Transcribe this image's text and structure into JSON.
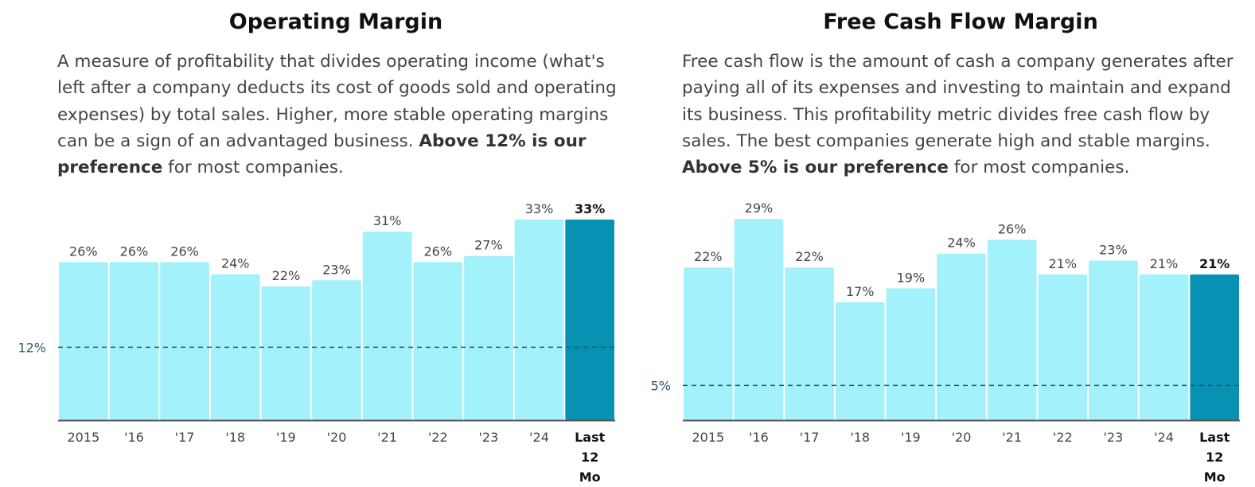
{
  "panels": [
    {
      "title": "Operating Margin",
      "description_pre": "A measure of profitability that divides operating income (what's left after a company deducts its cost of goods sold and operating expenses) by total sales. Higher, more stable operating margins can be a sign of an advantaged business. ",
      "description_bold": "Above 12% is our preference",
      "description_post": " for most companies.",
      "chart_data": {
        "type": "bar",
        "categories": [
          "2015",
          "'16",
          "'17",
          "'18",
          "'19",
          "'20",
          "'21",
          "'22",
          "'23",
          "'24",
          "Last 12 Mo"
        ],
        "values": [
          26,
          26,
          26,
          24,
          22,
          23,
          31,
          26,
          27,
          33,
          33
        ],
        "value_labels": [
          "26%",
          "26%",
          "26%",
          "24%",
          "22%",
          "23%",
          "31%",
          "26%",
          "27%",
          "33%",
          "33%"
        ],
        "threshold": 12,
        "threshold_label": "12%",
        "highlight_last": true,
        "colors": {
          "bar": "#a3f1fa",
          "highlight": "#0891b2",
          "threshold": "#2a5a68",
          "axis": "#555555"
        }
      }
    },
    {
      "title": "Free Cash Flow Margin",
      "description_pre": "Free cash flow is the amount of cash a company generates after paying all of its expenses and investing to maintain and expand its business. This profitability metric divides free cash flow by sales. The best companies generate high and stable margins. ",
      "description_bold": "Above 5% is our preference",
      "description_post": " for most companies.",
      "chart_data": {
        "type": "bar",
        "categories": [
          "2015",
          "'16",
          "'17",
          "'18",
          "'19",
          "'20",
          "'21",
          "'22",
          "'23",
          "'24",
          "Last 12 Mo"
        ],
        "values": [
          22,
          29,
          22,
          17,
          19,
          24,
          26,
          21,
          23,
          21,
          21
        ],
        "value_labels": [
          "22%",
          "29%",
          "22%",
          "17%",
          "19%",
          "24%",
          "26%",
          "21%",
          "23%",
          "21%",
          "21%"
        ],
        "threshold": 5,
        "threshold_label": "5%",
        "highlight_last": true,
        "colors": {
          "bar": "#a3f1fa",
          "highlight": "#0891b2",
          "threshold": "#2a5a68",
          "axis": "#555555"
        }
      }
    }
  ]
}
